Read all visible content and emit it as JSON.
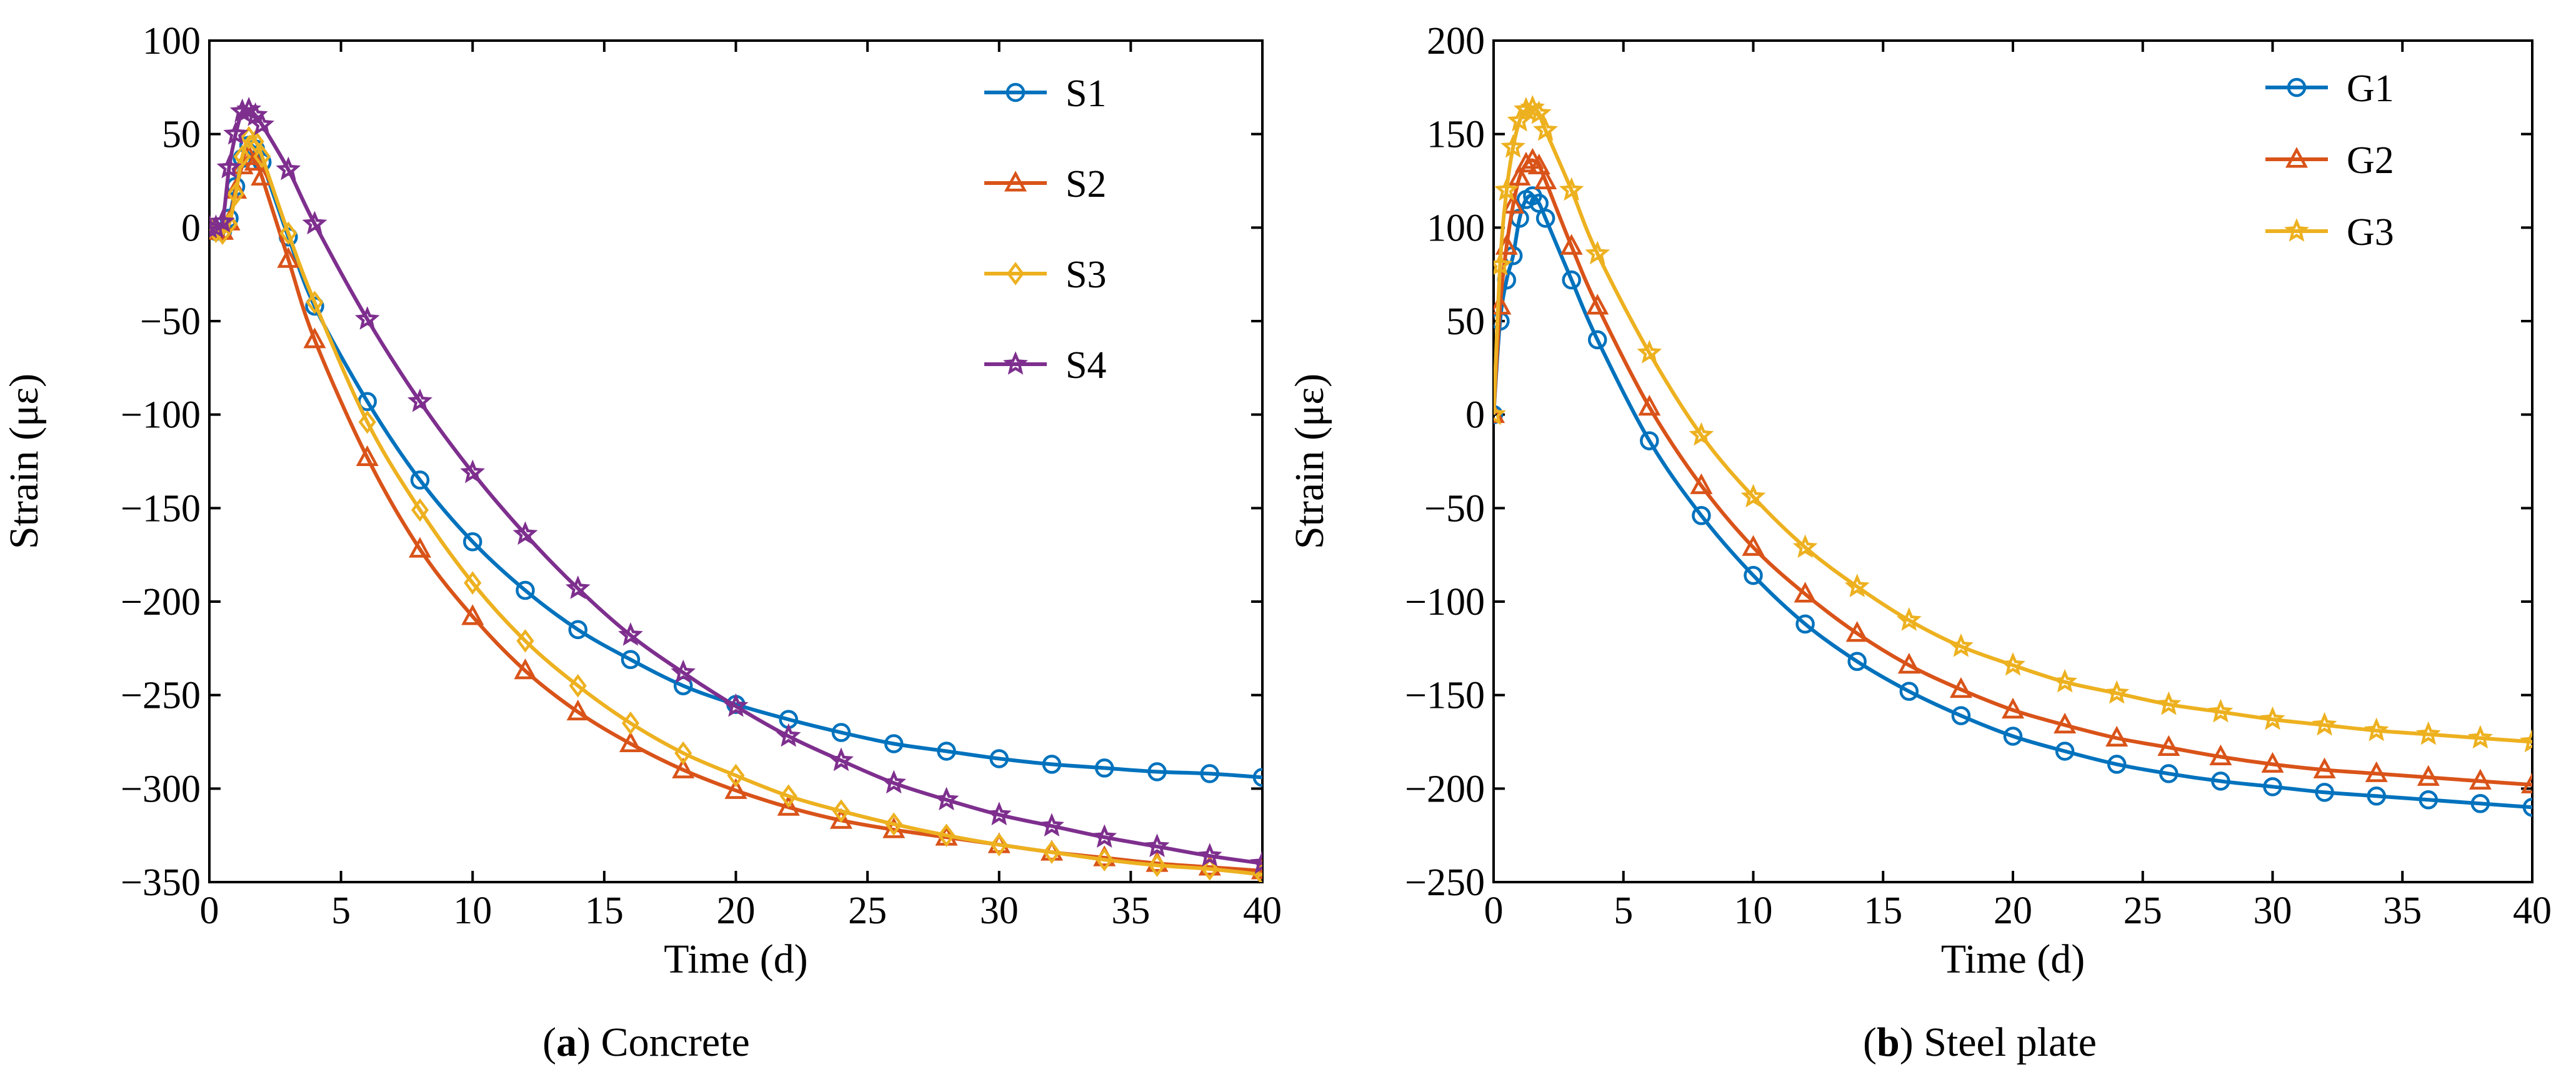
{
  "chart_data": [
    {
      "type": "line",
      "caption_letter": "a",
      "caption_text": "Concrete",
      "xlabel": "Time (d)",
      "ylabel": "Strain (με)",
      "xlim": [
        0,
        40
      ],
      "ylim": [
        -350,
        100
      ],
      "xticks": [
        0,
        5,
        10,
        15,
        20,
        25,
        30,
        35,
        40
      ],
      "yticks": [
        100,
        50,
        0,
        -50,
        -100,
        -150,
        -200,
        -250,
        -300,
        -350
      ],
      "legend_position": "top-right",
      "series": [
        {
          "name": "S1",
          "color": "#0072BD",
          "marker": "circle",
          "x": [
            0,
            0.25,
            0.5,
            0.75,
            1,
            1.25,
            1.5,
            1.75,
            2,
            3,
            4,
            6,
            8,
            10,
            12,
            14,
            16,
            18,
            20,
            22,
            24,
            26,
            28,
            30,
            32,
            34,
            36,
            38,
            40
          ],
          "values": [
            0,
            -2,
            -2,
            5,
            22,
            37,
            44,
            42,
            35,
            -5,
            -42,
            -93,
            -135,
            -168,
            -194,
            -215,
            -231,
            -245,
            -255,
            -263,
            -270,
            -276,
            -280,
            -284,
            -287,
            -289,
            -291,
            -292,
            -294
          ]
        },
        {
          "name": "S2",
          "color": "#D95319",
          "marker": "triangle",
          "x": [
            0,
            0.25,
            0.5,
            0.75,
            1,
            1.25,
            1.5,
            1.75,
            2,
            3,
            4,
            6,
            8,
            10,
            12,
            14,
            16,
            18,
            20,
            22,
            24,
            26,
            28,
            30,
            32,
            34,
            36,
            38,
            40
          ],
          "values": [
            0,
            -2,
            -2,
            3,
            20,
            33,
            38,
            35,
            27,
            -17,
            -60,
            -123,
            -172,
            -208,
            -237,
            -259,
            -276,
            -290,
            -301,
            -310,
            -317,
            -322,
            -326,
            -330,
            -334,
            -337,
            -340,
            -342,
            -344
          ]
        },
        {
          "name": "S3",
          "color": "#EDB120",
          "marker": "diamond",
          "x": [
            0,
            0.25,
            0.5,
            0.75,
            1,
            1.25,
            1.5,
            1.75,
            2,
            3,
            4,
            6,
            8,
            10,
            12,
            14,
            16,
            18,
            20,
            22,
            24,
            26,
            28,
            30,
            32,
            34,
            36,
            38,
            40
          ],
          "values": [
            0,
            -2,
            -3,
            2,
            18,
            38,
            48,
            46,
            38,
            -3,
            -40,
            -104,
            -151,
            -190,
            -221,
            -245,
            -265,
            -281,
            -293,
            -304,
            -312,
            -319,
            -325,
            -330,
            -334,
            -338,
            -341,
            -343,
            -346
          ]
        },
        {
          "name": "S4",
          "color": "#7E2F8E",
          "marker": "star",
          "x": [
            0,
            0.25,
            0.5,
            0.75,
            1,
            1.25,
            1.5,
            1.75,
            2,
            3,
            4,
            6,
            8,
            10,
            12,
            14,
            16,
            18,
            20,
            22,
            24,
            26,
            28,
            30,
            32,
            34,
            36,
            38,
            40
          ],
          "values": [
            0,
            0,
            3,
            32,
            50,
            62,
            63,
            60,
            55,
            31,
            2,
            -49,
            -93,
            -131,
            -164,
            -193,
            -218,
            -238,
            -256,
            -272,
            -285,
            -297,
            -306,
            -314,
            -320,
            -326,
            -331,
            -336,
            -340
          ]
        }
      ]
    },
    {
      "type": "line",
      "caption_letter": "b",
      "caption_text": "Steel plate",
      "xlabel": "Time (d)",
      "ylabel": "Strain (με)",
      "xlim": [
        0,
        40
      ],
      "ylim": [
        -250,
        200
      ],
      "xticks": [
        0,
        5,
        10,
        15,
        20,
        25,
        30,
        35,
        40
      ],
      "yticks": [
        200,
        150,
        100,
        50,
        0,
        -50,
        -100,
        -150,
        -200,
        -250
      ],
      "legend_position": "top-right",
      "series": [
        {
          "name": "G1",
          "color": "#0072BD",
          "marker": "circle",
          "x": [
            0,
            0.25,
            0.5,
            0.75,
            1,
            1.25,
            1.5,
            1.75,
            2,
            3,
            4,
            6,
            8,
            10,
            12,
            14,
            16,
            18,
            20,
            22,
            24,
            26,
            28,
            30,
            32,
            34,
            36,
            38,
            40
          ],
          "values": [
            0,
            50,
            72,
            85,
            105,
            115,
            117,
            113,
            105,
            72,
            40,
            -14,
            -54,
            -86,
            -112,
            -132,
            -148,
            -161,
            -172,
            -180,
            -187,
            -192,
            -196,
            -199,
            -202,
            -204,
            -206,
            -208,
            -210
          ]
        },
        {
          "name": "G2",
          "color": "#D95319",
          "marker": "triangle",
          "x": [
            0,
            0.25,
            0.5,
            0.75,
            1,
            1.25,
            1.5,
            1.75,
            2,
            3,
            4,
            6,
            8,
            10,
            12,
            14,
            16,
            18,
            20,
            22,
            24,
            26,
            28,
            30,
            32,
            34,
            36,
            38,
            40
          ],
          "values": [
            0,
            58,
            90,
            112,
            127,
            134,
            136,
            133,
            125,
            90,
            58,
            4,
            -38,
            -71,
            -96,
            -117,
            -134,
            -147,
            -158,
            -166,
            -173,
            -178,
            -183,
            -187,
            -190,
            -192,
            -194,
            -196,
            -198
          ]
        },
        {
          "name": "G3",
          "color": "#EDB120",
          "marker": "star",
          "x": [
            0,
            0.25,
            0.5,
            0.75,
            1,
            1.25,
            1.5,
            1.75,
            2,
            3,
            4,
            6,
            8,
            10,
            12,
            14,
            16,
            18,
            20,
            22,
            24,
            26,
            28,
            30,
            32,
            34,
            36,
            38,
            40
          ],
          "values": [
            0,
            80,
            120,
            143,
            157,
            163,
            164,
            161,
            152,
            120,
            86,
            33,
            -11,
            -44,
            -71,
            -92,
            -110,
            -124,
            -134,
            -143,
            -149,
            -155,
            -159,
            -163,
            -166,
            -169,
            -171,
            -173,
            -175
          ]
        }
      ]
    }
  ]
}
